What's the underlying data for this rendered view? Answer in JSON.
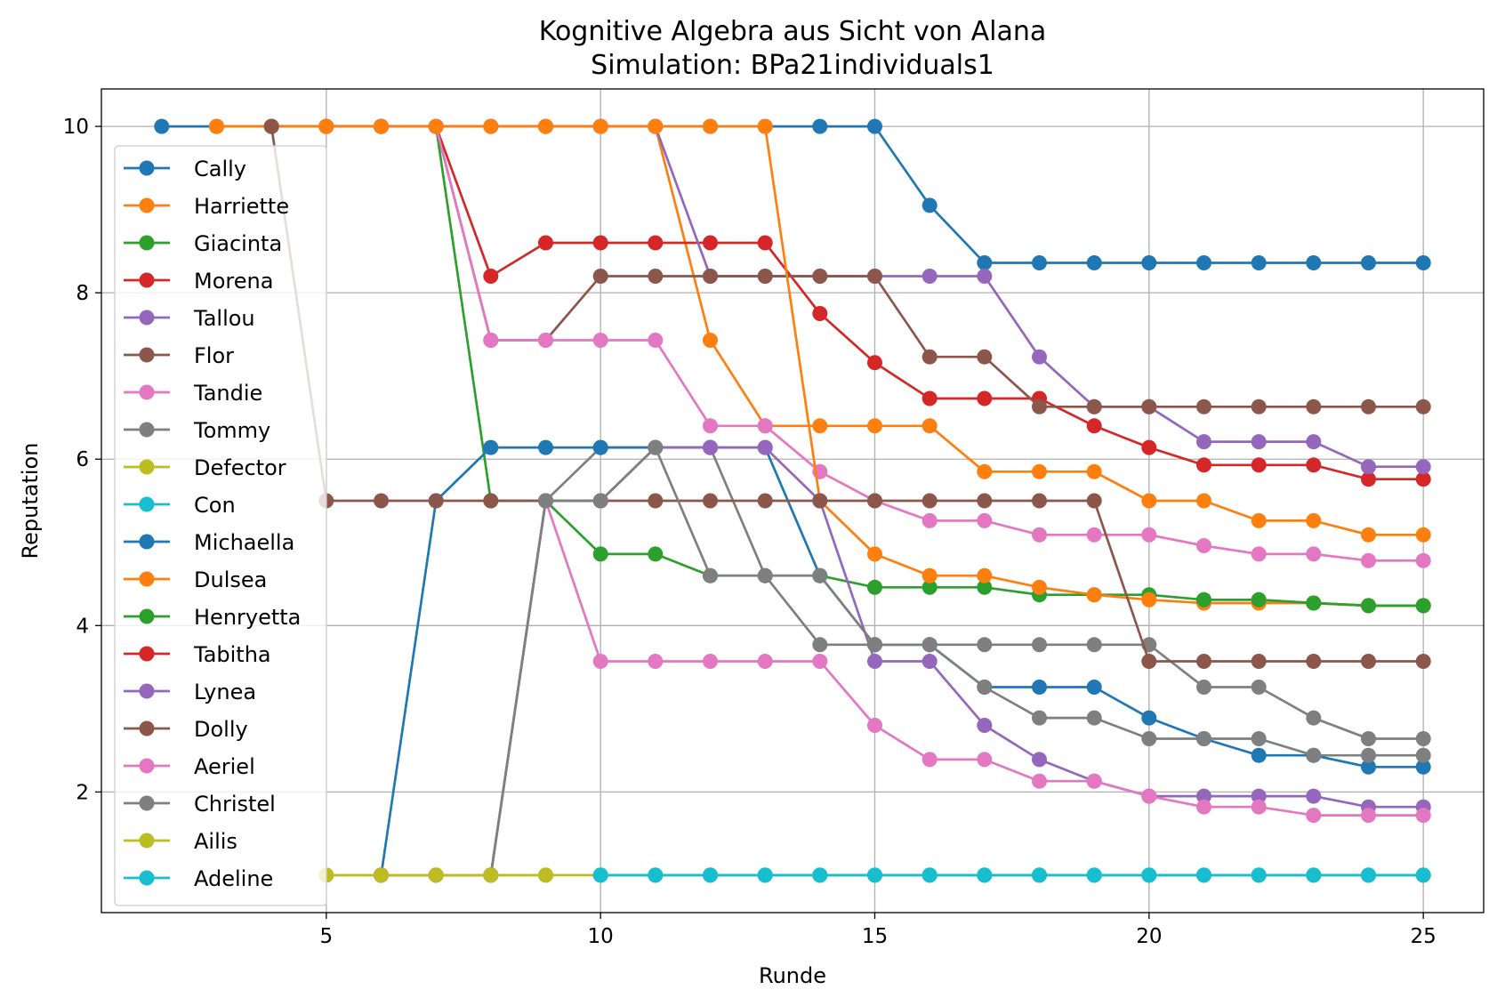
{
  "chart_data": {
    "type": "line",
    "title": "Kognitive Algebra aus Sicht von Alana",
    "subtitle": "Simulation: BPa21individuals1",
    "xlabel": "Runde",
    "ylabel": "Reputation",
    "xlim": [
      0.9,
      26.1
    ],
    "ylim": [
      0.55,
      10.45
    ],
    "xticks": [
      5,
      10,
      15,
      20,
      25
    ],
    "yticks": [
      2,
      4,
      6,
      8,
      10
    ],
    "grid": true,
    "legend_position": "upper-left",
    "series": [
      {
        "name": "Cally",
        "color": "#1f77b4",
        "x": [
          2,
          3,
          4,
          5,
          6,
          7,
          8,
          9,
          10,
          11,
          12,
          13,
          14,
          15,
          16,
          17,
          18,
          19,
          20,
          21,
          22,
          23,
          24,
          25
        ],
        "y": [
          10,
          10,
          10,
          10,
          10,
          10,
          10,
          10,
          10,
          10,
          10,
          10,
          10,
          10,
          9.05,
          8.36,
          8.36,
          8.36,
          8.36,
          8.36,
          8.36,
          8.36,
          8.36,
          8.36
        ]
      },
      {
        "name": "Harriette",
        "color": "#ff7f0e",
        "x": [
          3,
          4,
          5,
          6,
          7,
          8,
          9,
          10,
          11,
          12,
          13,
          14,
          15,
          16,
          17,
          18,
          19,
          20,
          21,
          22,
          23,
          24,
          25
        ],
        "y": [
          10,
          10,
          10,
          10,
          10,
          10,
          10,
          10,
          10,
          7.43,
          6.4,
          6.4,
          6.4,
          6.4,
          5.85,
          5.85,
          5.85,
          5.5,
          5.5,
          5.26,
          5.26,
          5.09,
          5.09
        ]
      },
      {
        "name": "Giacinta",
        "color": "#2ca02c",
        "x": [
          4,
          5,
          6,
          7,
          8,
          9,
          10,
          11,
          12,
          13,
          14,
          15,
          16,
          17,
          18,
          19,
          20,
          21,
          22,
          23,
          24,
          25
        ],
        "y": [
          10,
          10,
          10,
          10,
          5.5,
          5.5,
          4.86,
          4.86,
          4.6,
          4.6,
          4.6,
          4.46,
          4.46,
          4.46,
          4.37,
          4.37,
          4.37,
          4.31,
          4.31,
          4.27,
          4.24,
          4.24
        ]
      },
      {
        "name": "Morena",
        "color": "#d62728",
        "x": [
          5,
          6,
          7,
          8,
          9,
          10,
          11,
          12,
          13,
          14,
          15,
          16,
          17,
          18,
          19,
          20,
          21,
          22,
          23,
          24,
          25
        ],
        "y": [
          10,
          10,
          10,
          8.2,
          8.6,
          8.6,
          8.6,
          8.6,
          8.6,
          7.75,
          7.16,
          6.73,
          6.73,
          6.73,
          6.4,
          6.14,
          5.93,
          5.93,
          5.93,
          5.76,
          5.76
        ]
      },
      {
        "name": "Tallou",
        "color": "#9467bd",
        "x": [
          6,
          7,
          8,
          9,
          10,
          11,
          12,
          13,
          14,
          15,
          16,
          17,
          18,
          19,
          20,
          21,
          22,
          23,
          24,
          25
        ],
        "y": [
          10,
          10,
          10,
          10,
          10,
          10,
          8.2,
          8.2,
          8.2,
          8.2,
          8.2,
          8.2,
          7.23,
          6.63,
          6.63,
          6.21,
          6.21,
          6.21,
          5.91,
          5.91
        ]
      },
      {
        "name": "Flor",
        "color": "#8c564b",
        "x": [
          7,
          8,
          9,
          10,
          11,
          12,
          13,
          14,
          15,
          16,
          17,
          18,
          19,
          20,
          21,
          22,
          23,
          24,
          25
        ],
        "y": [
          10,
          7.43,
          7.43,
          8.2,
          8.2,
          8.2,
          8.2,
          8.2,
          8.2,
          7.23,
          7.23,
          6.63,
          6.63,
          6.63,
          6.63,
          6.63,
          6.63,
          6.63,
          6.63
        ]
      },
      {
        "name": "Tandie",
        "color": "#e377c2",
        "x": [
          7,
          8,
          9,
          10,
          11,
          12,
          13,
          14,
          15,
          16,
          17,
          18,
          19,
          20,
          21,
          22,
          23,
          24,
          25
        ],
        "y": [
          10,
          7.43,
          7.43,
          7.43,
          7.43,
          6.4,
          6.4,
          5.85,
          5.5,
          5.26,
          5.26,
          5.09,
          5.09,
          5.09,
          4.96,
          4.86,
          4.86,
          4.78,
          4.78
        ]
      },
      {
        "name": "Tommy",
        "color": "#7f7f7f",
        "x": [
          8,
          9,
          10,
          11,
          12,
          13,
          14,
          15,
          16,
          17,
          18,
          19,
          20,
          21,
          22,
          23,
          24,
          25
        ],
        "y": [
          1,
          5.5,
          6.14,
          6.14,
          6.14,
          4.6,
          3.77,
          3.77,
          3.77,
          3.77,
          3.77,
          3.77,
          3.77,
          3.26,
          3.26,
          2.89,
          2.64,
          2.64
        ]
      },
      {
        "name": "Defector",
        "color": "#bcbd22",
        "x": [
          5,
          6,
          7,
          8,
          9,
          10,
          11,
          12,
          13,
          14,
          15,
          16,
          17,
          18,
          19,
          20,
          21,
          22,
          23,
          24,
          25
        ],
        "y": [
          1,
          1,
          1,
          1,
          1,
          1,
          1,
          1,
          1,
          1,
          1,
          1,
          1,
          1,
          1,
          1,
          1,
          1,
          1,
          1,
          1
        ]
      },
      {
        "name": "Con",
        "color": "#17becf",
        "x": [
          10,
          11,
          12,
          13,
          14,
          15,
          16,
          17,
          18,
          19,
          20,
          21,
          22,
          23,
          24,
          25
        ],
        "y": [
          1,
          1,
          1,
          1,
          1,
          1,
          1,
          1,
          1,
          1,
          1,
          1,
          1,
          1,
          1,
          1
        ]
      },
      {
        "name": "Michaella",
        "color": "#1f77b4",
        "x": [
          6,
          7,
          8,
          9,
          10,
          11,
          12,
          13,
          14,
          15,
          16,
          17,
          18,
          19,
          20,
          21,
          22,
          23,
          24,
          25
        ],
        "y": [
          1,
          5.5,
          6.14,
          6.14,
          6.14,
          6.14,
          6.14,
          6.14,
          4.6,
          3.77,
          3.77,
          3.26,
          3.26,
          3.26,
          2.89,
          2.64,
          2.44,
          2.44,
          2.3,
          2.3
        ]
      },
      {
        "name": "Dulsea",
        "color": "#ff7f0e",
        "x": [
          3,
          4,
          5,
          6,
          7,
          8,
          9,
          10,
          11,
          12,
          13,
          14,
          15,
          16,
          17,
          18,
          19,
          20,
          21,
          22,
          23,
          24,
          25
        ],
        "y": [
          10,
          10,
          10,
          10,
          10,
          10,
          10,
          10,
          10,
          10,
          10,
          5.5,
          4.86,
          4.6,
          4.6,
          4.46,
          4.37,
          4.31,
          4.27,
          4.27,
          4.27,
          4.24,
          4.24
        ]
      },
      {
        "name": "Henryetta",
        "color": "#2ca02c",
        "x": [
          21,
          22,
          23,
          24,
          25
        ],
        "y": [
          4.31,
          4.31,
          4.27,
          4.24,
          4.24
        ]
      },
      {
        "name": "Tabitha",
        "color": "#d62728",
        "x": [
          6,
          7,
          8
        ],
        "y": [
          1,
          1,
          1
        ]
      },
      {
        "name": "Lynea",
        "color": "#9467bd",
        "x": [
          8,
          9,
          10,
          11,
          12,
          13,
          14,
          15,
          16,
          17,
          18,
          19,
          20,
          21,
          22,
          23,
          24,
          25
        ],
        "y": [
          1,
          5.5,
          5.5,
          6.14,
          6.14,
          6.14,
          5.5,
          3.57,
          3.57,
          2.8,
          2.39,
          2.13,
          1.95,
          1.95,
          1.95,
          1.95,
          1.82,
          1.82
        ]
      },
      {
        "name": "Dolly",
        "color": "#8c564b",
        "x": [
          4,
          5,
          6,
          7,
          8,
          9,
          10,
          11,
          12,
          13,
          14,
          15,
          16,
          17,
          18,
          19,
          20,
          21,
          22,
          23,
          24,
          25
        ],
        "y": [
          10,
          5.5,
          5.5,
          5.5,
          5.5,
          5.5,
          5.5,
          5.5,
          5.5,
          5.5,
          5.5,
          5.5,
          5.5,
          5.5,
          5.5,
          5.5,
          3.57,
          3.57,
          3.57,
          3.57,
          3.57,
          3.57
        ]
      },
      {
        "name": "Aeriel",
        "color": "#e377c2",
        "x": [
          8,
          9,
          10,
          11,
          12,
          13,
          14,
          15,
          16,
          17,
          18,
          19,
          20,
          21,
          22,
          23,
          24,
          25
        ],
        "y": [
          1,
          5.5,
          3.57,
          3.57,
          3.57,
          3.57,
          3.57,
          2.8,
          2.39,
          2.39,
          2.13,
          2.13,
          1.95,
          1.82,
          1.82,
          1.72,
          1.72,
          1.72
        ]
      },
      {
        "name": "Christel",
        "color": "#7f7f7f",
        "x": [
          8,
          9,
          10,
          11,
          12,
          13,
          14,
          15,
          16,
          17,
          18,
          19,
          20,
          21,
          22,
          23,
          24,
          25
        ],
        "y": [
          1,
          5.5,
          5.5,
          6.14,
          4.6,
          4.6,
          4.6,
          3.77,
          3.77,
          3.26,
          2.89,
          2.89,
          2.64,
          2.64,
          2.64,
          2.44,
          2.44,
          2.44
        ]
      },
      {
        "name": "Ailis",
        "color": "#bcbd22",
        "x": [
          5,
          6,
          7,
          8,
          9
        ],
        "y": [
          1,
          1,
          1,
          1,
          1
        ]
      },
      {
        "name": "Adeline",
        "color": "#17becf",
        "x": [
          10,
          11,
          12,
          13,
          14,
          15,
          16,
          17,
          18,
          19,
          20,
          21,
          22,
          23,
          24,
          25
        ],
        "y": [
          1,
          1,
          1,
          1,
          1,
          1,
          1,
          1,
          1,
          1,
          1,
          1,
          1,
          1,
          1,
          1
        ]
      }
    ]
  }
}
